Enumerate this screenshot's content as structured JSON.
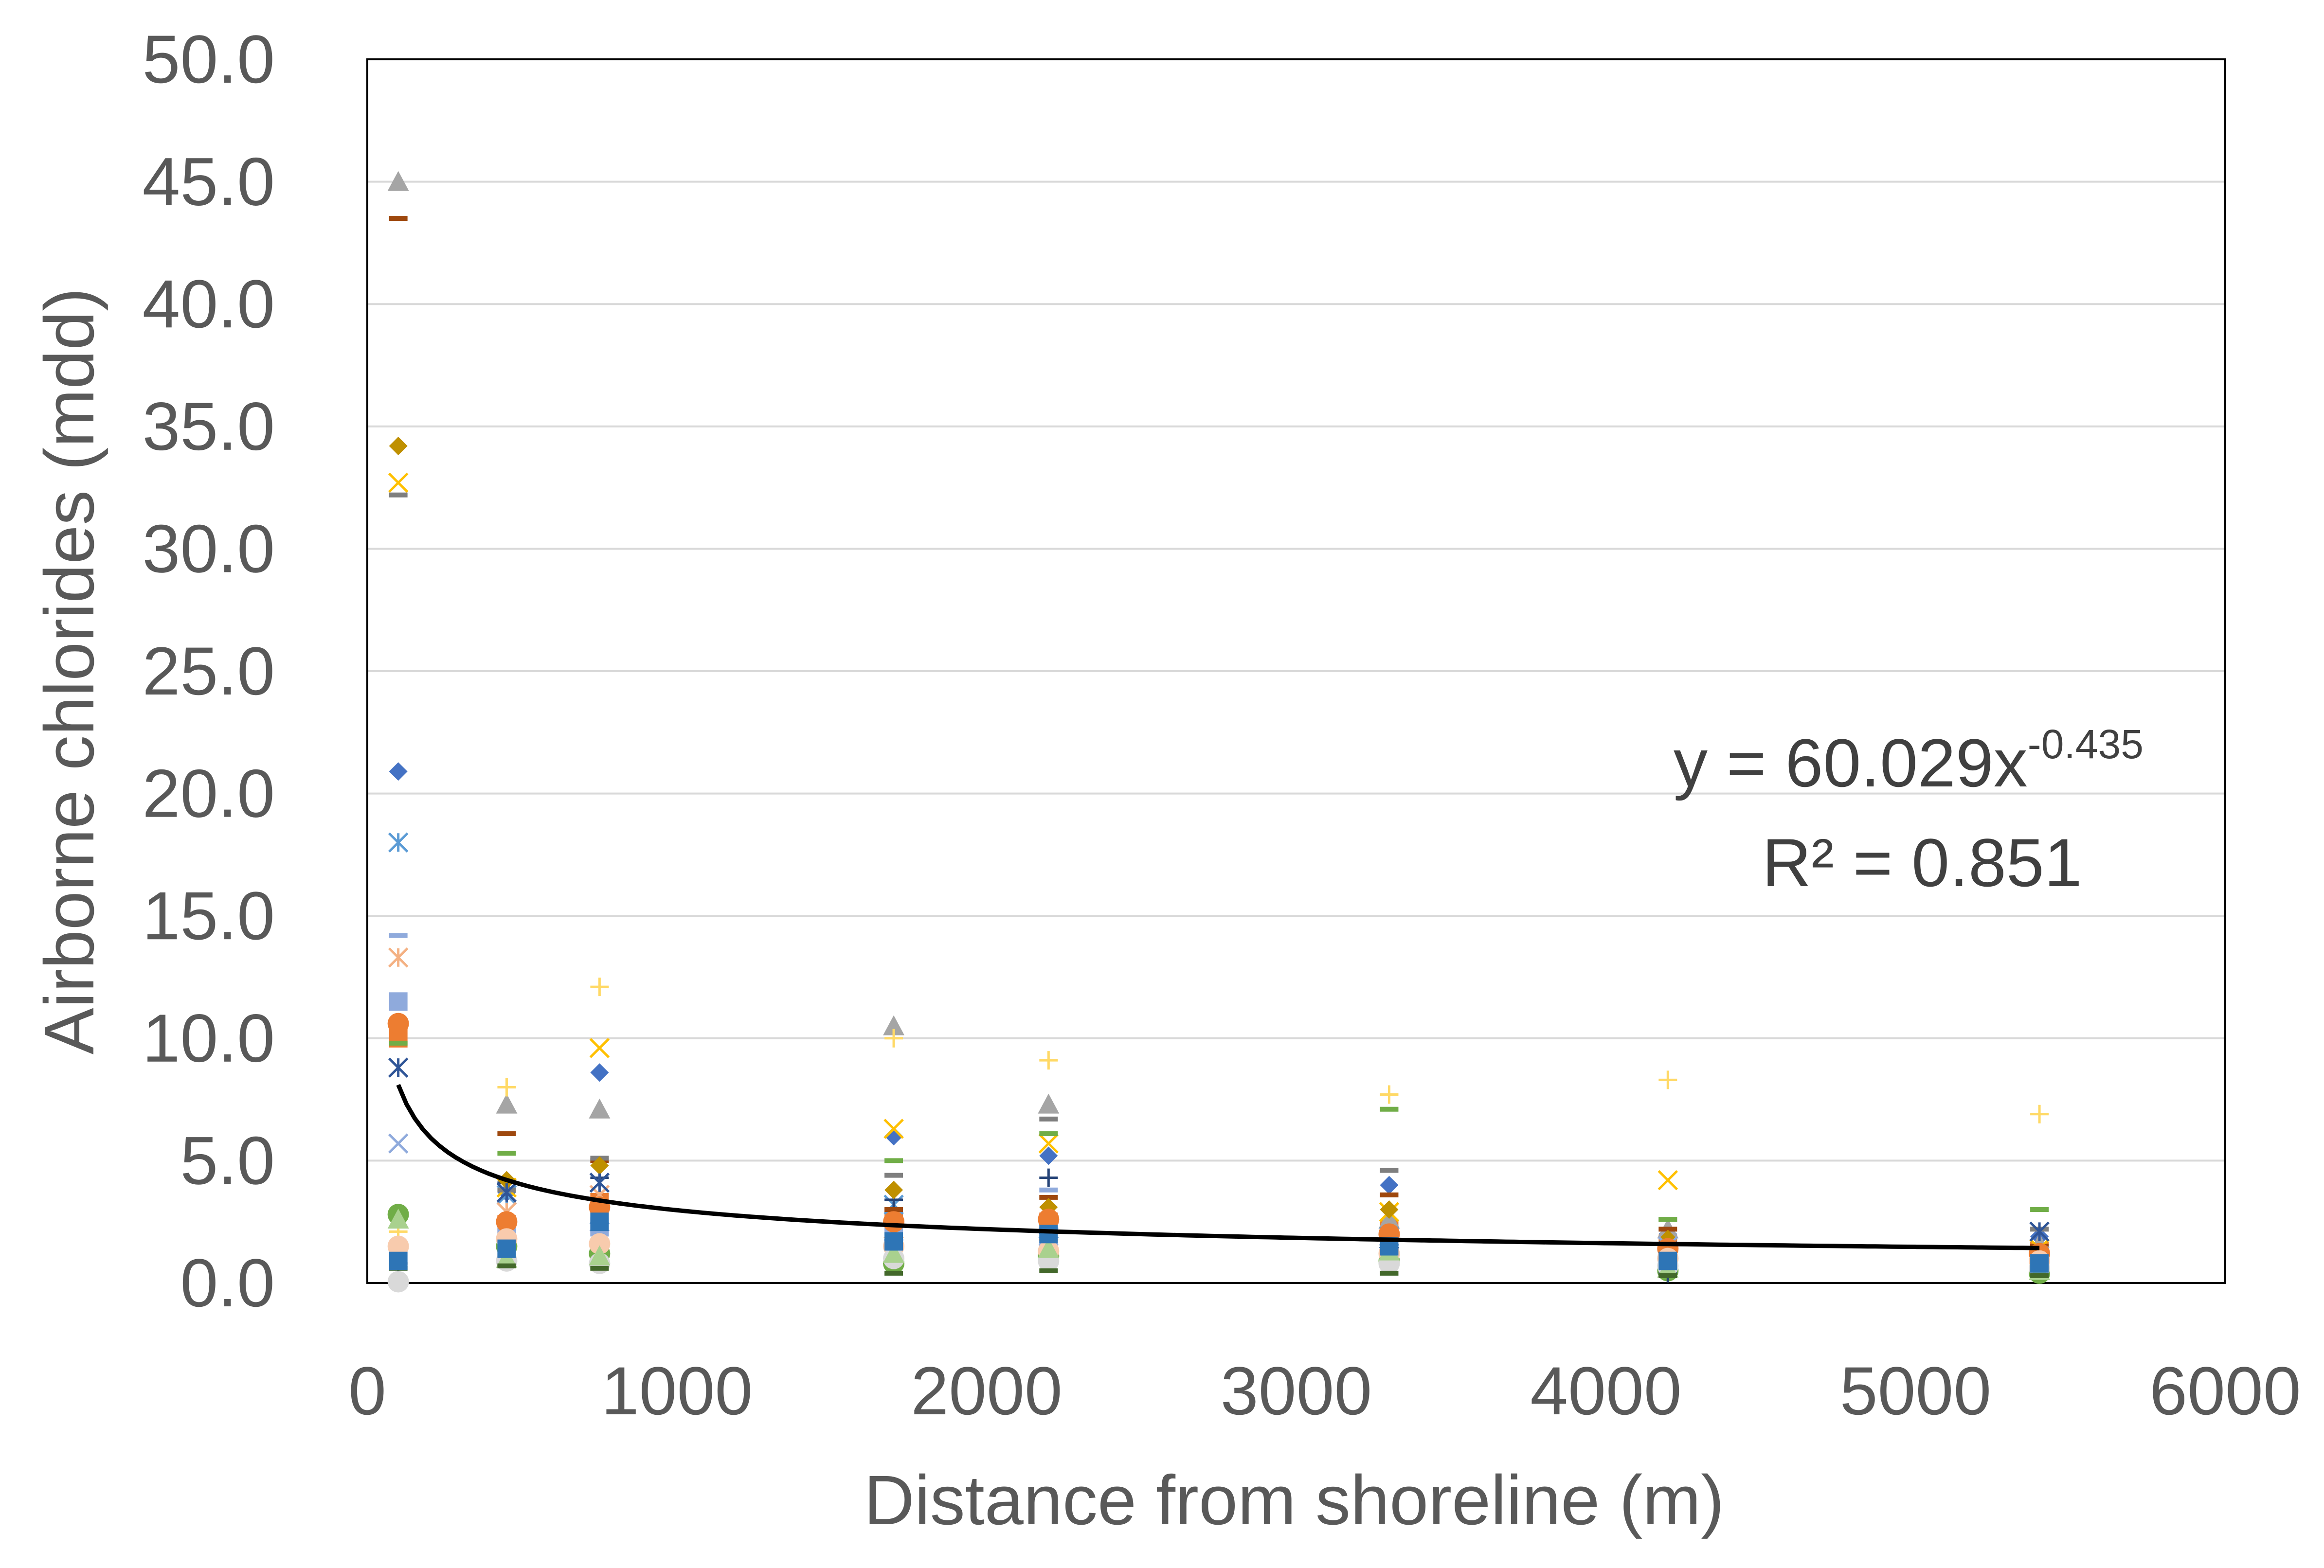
{
  "chart_data": {
    "type": "scatter",
    "title": "",
    "xlabel": "Distance from shoreline (m)",
    "ylabel": "Airborne chlorides (mdd)",
    "xlim": [
      0,
      6000
    ],
    "ylim": [
      0,
      50
    ],
    "x_ticks": [
      "0",
      "1000",
      "2000",
      "3000",
      "4000",
      "5000",
      "6000"
    ],
    "y_ticks": [
      "0.0",
      "5.0",
      "10.0",
      "15.0",
      "20.0",
      "25.0",
      "30.0",
      "35.0",
      "40.0",
      "45.0",
      "50.0"
    ],
    "grid": "horizontal",
    "legend": "none",
    "series": [
      {
        "marker": "diamond",
        "color": "#4472C4",
        "points": [
          [
            100,
            20.9
          ],
          [
            100,
            10.2
          ],
          [
            450,
            3.7
          ],
          [
            750,
            8.6
          ],
          [
            1700,
            6.0
          ],
          [
            2200,
            5.2
          ],
          [
            3300,
            4.0
          ],
          [
            4200,
            2.0
          ],
          [
            5400,
            1.9
          ]
        ]
      },
      {
        "marker": "square",
        "color": "#ED7D31",
        "points": [
          [
            100,
            10.0
          ],
          [
            450,
            2.4
          ],
          [
            750,
            3.3
          ],
          [
            1700,
            2.7
          ],
          [
            2200,
            2.5
          ],
          [
            3300,
            2.2
          ],
          [
            4200,
            1.6
          ],
          [
            5400,
            1.3
          ]
        ]
      },
      {
        "marker": "triangle",
        "color": "#A5A5A5",
        "points": [
          [
            100,
            45.0
          ],
          [
            450,
            7.3
          ],
          [
            750,
            7.1
          ],
          [
            1700,
            10.5
          ],
          [
            2200,
            7.3
          ],
          [
            3300,
            2.6
          ],
          [
            4200,
            2.2
          ],
          [
            5400,
            1.6
          ]
        ]
      },
      {
        "marker": "x",
        "color": "#FFC000",
        "points": [
          [
            100,
            32.7
          ],
          [
            450,
            3.9
          ],
          [
            750,
            9.6
          ],
          [
            1700,
            6.3
          ],
          [
            2200,
            5.7
          ],
          [
            3300,
            2.9
          ],
          [
            4200,
            4.2
          ],
          [
            5400,
            1.4
          ]
        ]
      },
      {
        "marker": "asterisk",
        "color": "#5B9BD5",
        "points": [
          [
            100,
            18.0
          ],
          [
            450,
            3.6
          ],
          [
            750,
            2.1
          ],
          [
            1700,
            3.2
          ],
          [
            2200,
            2.2
          ],
          [
            3300,
            1.9
          ],
          [
            4200,
            1.2
          ],
          [
            5400,
            1.0
          ]
        ]
      },
      {
        "marker": "circle",
        "color": "#70AD47",
        "points": [
          [
            100,
            2.8
          ],
          [
            450,
            1.5
          ],
          [
            750,
            1.2
          ],
          [
            1700,
            0.8
          ],
          [
            2200,
            1.1
          ],
          [
            3300,
            0.9
          ],
          [
            4200,
            0.5
          ],
          [
            5400,
            0.4
          ]
        ]
      },
      {
        "marker": "plus",
        "color": "#264478",
        "points": [
          [
            100,
            0.8
          ],
          [
            450,
            4.1
          ],
          [
            750,
            4.3
          ],
          [
            1700,
            3.4
          ],
          [
            2200,
            4.3
          ],
          [
            3300,
            0.7
          ],
          [
            4200,
            0.4
          ],
          [
            5400,
            0.6
          ]
        ]
      },
      {
        "marker": "dash",
        "color": "#9E480E",
        "points": [
          [
            100,
            43.5
          ],
          [
            450,
            6.1
          ],
          [
            750,
            5.0
          ],
          [
            1700,
            3.0
          ],
          [
            2200,
            3.5
          ],
          [
            3300,
            3.6
          ],
          [
            4200,
            2.2
          ],
          [
            5400,
            1.5
          ]
        ]
      },
      {
        "marker": "dash",
        "color": "#7F7F7F",
        "points": [
          [
            100,
            32.2
          ],
          [
            450,
            3.8
          ],
          [
            750,
            5.1
          ],
          [
            1700,
            4.4
          ],
          [
            2200,
            6.7
          ],
          [
            3300,
            4.6
          ],
          [
            4200,
            2.6
          ],
          [
            5400,
            2.2
          ]
        ]
      },
      {
        "marker": "diamond",
        "color": "#BF9000",
        "points": [
          [
            100,
            34.2
          ],
          [
            450,
            4.2
          ],
          [
            750,
            4.8
          ],
          [
            1700,
            3.8
          ],
          [
            2200,
            3.1
          ],
          [
            3300,
            3.0
          ],
          [
            4200,
            1.8
          ],
          [
            5400,
            1.2
          ]
        ]
      },
      {
        "marker": "square",
        "color": "#8FAADC",
        "points": [
          [
            100,
            11.5
          ],
          [
            450,
            1.9
          ],
          [
            750,
            2.3
          ],
          [
            1700,
            1.9
          ],
          [
            2200,
            1.6
          ],
          [
            3300,
            1.4
          ],
          [
            4200,
            0.9
          ],
          [
            5400,
            1.0
          ]
        ]
      },
      {
        "marker": "dash",
        "color": "#70AD47",
        "points": [
          [
            100,
            9.8
          ],
          [
            450,
            5.3
          ],
          [
            750,
            1.4
          ],
          [
            1700,
            5.0
          ],
          [
            2200,
            6.1
          ],
          [
            3300,
            7.1
          ],
          [
            4200,
            2.6
          ],
          [
            5400,
            3.0
          ]
        ]
      },
      {
        "marker": "asterisk",
        "color": "#F4B183",
        "points": [
          [
            100,
            13.3
          ],
          [
            450,
            2.9
          ],
          [
            750,
            3.6
          ],
          [
            1700,
            2.2
          ],
          [
            2200,
            2.1
          ],
          [
            3300,
            1.7
          ],
          [
            4200,
            1.1
          ],
          [
            5400,
            0.9
          ]
        ]
      },
      {
        "marker": "x",
        "color": "#8FAADC",
        "points": [
          [
            100,
            5.7
          ],
          [
            450,
            2.2
          ],
          [
            750,
            1.8
          ],
          [
            1700,
            2.1
          ],
          [
            2200,
            1.9
          ],
          [
            3300,
            1.6
          ],
          [
            4200,
            1.5
          ],
          [
            5400,
            1.1
          ]
        ]
      },
      {
        "marker": "dash",
        "color": "#8FAADC",
        "points": [
          [
            100,
            14.2
          ],
          [
            450,
            1.2
          ],
          [
            750,
            2.0
          ],
          [
            1700,
            1.4
          ],
          [
            2200,
            3.8
          ],
          [
            3300,
            1.2
          ],
          [
            4200,
            0.8
          ],
          [
            5400,
            0.7
          ]
        ]
      },
      {
        "marker": "asterisk",
        "color": "#2F5597",
        "points": [
          [
            100,
            8.8
          ],
          [
            450,
            3.7
          ],
          [
            750,
            4.1
          ],
          [
            1700,
            1.3
          ],
          [
            2200,
            1.7
          ],
          [
            3300,
            1.1
          ],
          [
            4200,
            1.3
          ],
          [
            5400,
            2.1
          ]
        ]
      },
      {
        "marker": "plus",
        "color": "#FFD966",
        "points": [
          [
            100,
            2.1
          ],
          [
            450,
            8.0
          ],
          [
            750,
            12.1
          ],
          [
            1700,
            10.0
          ],
          [
            2200,
            9.1
          ],
          [
            3300,
            7.7
          ],
          [
            4200,
            8.3
          ],
          [
            5400,
            6.9
          ]
        ]
      },
      {
        "marker": "circle",
        "color": "#ED7D31",
        "points": [
          [
            100,
            10.6
          ],
          [
            450,
            2.5
          ],
          [
            750,
            3.1
          ],
          [
            1700,
            2.5
          ],
          [
            2200,
            2.6
          ],
          [
            3300,
            2.0
          ],
          [
            4200,
            1.4
          ],
          [
            5400,
            1.2
          ]
        ]
      },
      {
        "marker": "circle",
        "color": "#F8CBAD",
        "points": [
          [
            100,
            1.5
          ],
          [
            450,
            1.8
          ],
          [
            750,
            1.6
          ],
          [
            1700,
            1.5
          ],
          [
            2200,
            1.3
          ],
          [
            3300,
            1.2
          ],
          [
            4200,
            1.0
          ],
          [
            5400,
            0.9
          ]
        ]
      },
      {
        "marker": "circle",
        "color": "#D9D9D9",
        "points": [
          [
            100,
            0.05
          ],
          [
            450,
            0.9
          ],
          [
            750,
            0.8
          ],
          [
            1700,
            1.0
          ],
          [
            2200,
            0.9
          ],
          [
            3300,
            0.8
          ],
          [
            4200,
            0.7
          ],
          [
            5400,
            0.6
          ]
        ]
      },
      {
        "marker": "triangle",
        "color": "#A9D18E",
        "points": [
          [
            100,
            2.6
          ],
          [
            450,
            1.0
          ],
          [
            750,
            1.1
          ],
          [
            1700,
            1.2
          ],
          [
            2200,
            1.4
          ],
          [
            3300,
            1.3
          ],
          [
            4200,
            0.6
          ],
          [
            5400,
            0.5
          ]
        ]
      },
      {
        "marker": "dash",
        "color": "#43682B",
        "points": [
          [
            100,
            0.6
          ],
          [
            450,
            0.7
          ],
          [
            750,
            0.6
          ],
          [
            1700,
            0.4
          ],
          [
            2200,
            0.5
          ],
          [
            3300,
            0.4
          ],
          [
            4200,
            0.3
          ],
          [
            5400,
            0.3
          ]
        ]
      },
      {
        "marker": "square",
        "color": "#2E75B6",
        "points": [
          [
            100,
            0.9
          ],
          [
            450,
            1.4
          ],
          [
            750,
            2.5
          ],
          [
            1700,
            1.7
          ],
          [
            2200,
            2.0
          ],
          [
            3300,
            1.5
          ],
          [
            4200,
            0.9
          ],
          [
            5400,
            0.8
          ]
        ]
      }
    ],
    "trendline": {
      "type": "power",
      "a": 60.029,
      "b": -0.435,
      "x_range": [
        100,
        5400
      ],
      "color": "#000000",
      "equation_text": "y = 60.029x",
      "equation_exponent": "-0.435",
      "r2_text": "R² = 0.851"
    }
  }
}
